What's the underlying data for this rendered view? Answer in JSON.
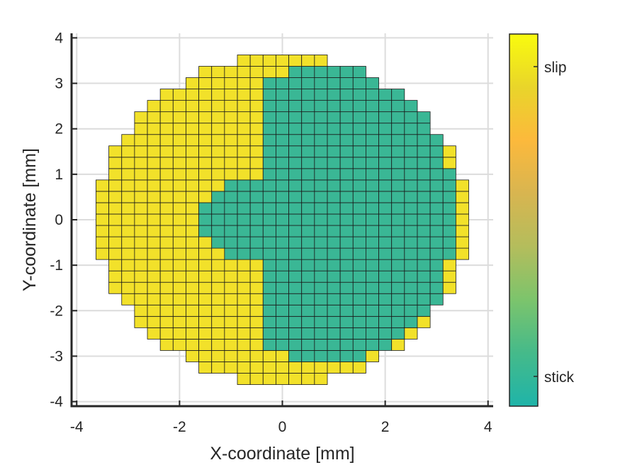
{
  "chart_data": {
    "type": "heatmap",
    "xlabel": "X-coordinate [mm]",
    "ylabel": "Y-coordinate [mm]",
    "xlim": [
      -4.1,
      4.1
    ],
    "ylim": [
      -4.1,
      4.1
    ],
    "xticks": [
      -4,
      -2,
      0,
      2,
      4
    ],
    "yticks": [
      -4,
      -3,
      -2,
      -1,
      0,
      1,
      2,
      3,
      4
    ],
    "grid": true,
    "cell_size_mm": 0.25,
    "contact_radius_mm": 3.6,
    "colorbar": {
      "labels": [
        "slip",
        "stick"
      ],
      "slip_color": "#f2e12a",
      "stick_color": "#3ab795",
      "gradient": [
        "#f9fb0e",
        "#e9d52a",
        "#fcb93c",
        "#d8b550",
        "#b4bd5c",
        "#7cc46c",
        "#45ba8a",
        "#1fb4a9"
      ]
    },
    "stick_region": [
      {
        "y": 3.25,
        "x_from": 0.25,
        "x_to": 1.75
      },
      {
        "y": 3.0,
        "x_from": -0.25,
        "x_to": 2.0
      },
      {
        "y": 2.75,
        "x_from": -0.25,
        "x_to": 2.25
      },
      {
        "y": 2.5,
        "x_from": -0.25,
        "x_to": 2.5
      },
      {
        "y": 2.25,
        "x_from": -0.25,
        "x_to": 2.75
      },
      {
        "y": 2.0,
        "x_from": -0.25,
        "x_to": 2.75
      },
      {
        "y": 1.75,
        "x_from": -0.25,
        "x_to": 3.0
      },
      {
        "y": 1.5,
        "x_from": -0.25,
        "x_to": 3.0
      },
      {
        "y": 1.25,
        "x_from": -0.25,
        "x_to": 3.0
      },
      {
        "y": 1.0,
        "x_from": -0.25,
        "x_to": 3.25
      },
      {
        "y": 0.75,
        "x_from": -1.0,
        "x_to": 3.25
      },
      {
        "y": 0.5,
        "x_from": -1.25,
        "x_to": 3.25
      },
      {
        "y": 0.25,
        "x_from": -1.5,
        "x_to": 3.25
      },
      {
        "y": 0.0,
        "x_from": -1.5,
        "x_to": 3.25
      },
      {
        "y": -0.25,
        "x_from": -1.5,
        "x_to": 3.25
      },
      {
        "y": -0.5,
        "x_from": -1.25,
        "x_to": 3.25
      },
      {
        "y": -0.75,
        "x_from": -1.0,
        "x_to": 3.25
      },
      {
        "y": -1.0,
        "x_from": -0.25,
        "x_to": 3.0
      },
      {
        "y": -1.25,
        "x_from": -0.25,
        "x_to": 3.0
      },
      {
        "y": -1.5,
        "x_from": -0.25,
        "x_to": 3.0
      },
      {
        "y": -1.75,
        "x_from": -0.25,
        "x_to": 3.0
      },
      {
        "y": -2.0,
        "x_from": -0.25,
        "x_to": 2.75
      },
      {
        "y": -2.25,
        "x_from": -0.25,
        "x_to": 2.5
      },
      {
        "y": -2.5,
        "x_from": -0.25,
        "x_to": 2.25
      },
      {
        "y": -2.75,
        "x_from": -0.25,
        "x_to": 2.0
      },
      {
        "y": -3.0,
        "x_from": 0.25,
        "x_to": 1.5
      }
    ]
  }
}
